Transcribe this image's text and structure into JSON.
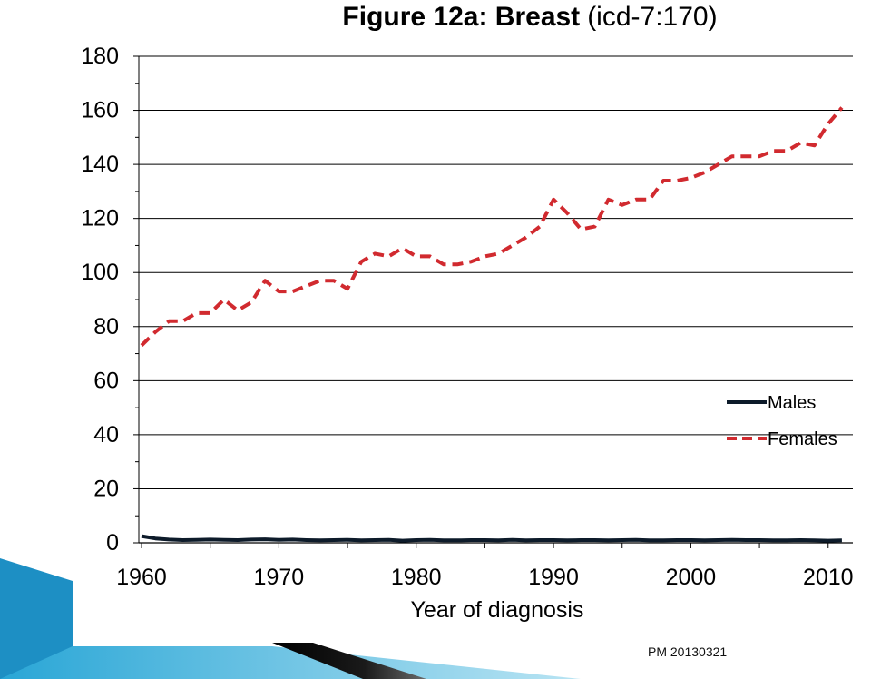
{
  "slide": {
    "stamp": "PM 20130321"
  },
  "chart_data": {
    "type": "line",
    "title_bold": "Figure 12a: Breast",
    "title_rest": "(icd-7:170)",
    "xlabel": "Year of diagnosis",
    "ylabel": "",
    "xlim": [
      1959.8,
      2011.8
    ],
    "ylim": [
      0,
      180
    ],
    "xticks": [
      1960,
      1970,
      1980,
      1990,
      2000,
      2010
    ],
    "yticks": [
      0,
      20,
      40,
      60,
      80,
      100,
      120,
      140,
      160,
      180
    ],
    "grid": true,
    "legend_position": "bottom-right",
    "series": [
      {
        "name": "Males",
        "color": "#0d1b2a",
        "style": "solid",
        "x": [
          1960,
          1961,
          1962,
          1963,
          1964,
          1965,
          1966,
          1967,
          1968,
          1969,
          1970,
          1971,
          1972,
          1973,
          1974,
          1975,
          1976,
          1977,
          1978,
          1979,
          1980,
          1981,
          1982,
          1983,
          1984,
          1985,
          1986,
          1987,
          1988,
          1989,
          1990,
          1991,
          1992,
          1993,
          1994,
          1995,
          1996,
          1997,
          1998,
          1999,
          2000,
          2001,
          2002,
          2003,
          2004,
          2005,
          2006,
          2007,
          2008,
          2009,
          2010,
          2011
        ],
        "values": [
          2.5,
          1.6,
          1.2,
          1.0,
          1.1,
          1.2,
          1.1,
          1.0,
          1.2,
          1.3,
          1.1,
          1.2,
          1.0,
          0.9,
          1.0,
          1.1,
          0.9,
          1.0,
          1.1,
          0.8,
          1.0,
          1.1,
          0.9,
          0.9,
          1.0,
          1.0,
          0.9,
          1.1,
          0.9,
          1.0,
          1.0,
          0.9,
          1.0,
          1.0,
          0.9,
          1.0,
          1.1,
          0.9,
          0.9,
          1.0,
          1.0,
          0.9,
          1.0,
          1.1,
          1.0,
          1.0,
          0.9,
          0.9,
          1.0,
          0.9,
          0.8,
          0.9
        ]
      },
      {
        "name": "Females",
        "color": "#d12a2f",
        "style": "dashed",
        "x": [
          1960,
          1961,
          1962,
          1963,
          1964,
          1965,
          1966,
          1967,
          1968,
          1969,
          1970,
          1971,
          1972,
          1973,
          1974,
          1975,
          1976,
          1977,
          1978,
          1979,
          1980,
          1981,
          1982,
          1983,
          1984,
          1985,
          1986,
          1987,
          1988,
          1989,
          1990,
          1991,
          1992,
          1993,
          1994,
          1995,
          1996,
          1997,
          1998,
          1999,
          2000,
          2001,
          2002,
          2003,
          2004,
          2005,
          2006,
          2007,
          2008,
          2009,
          2010,
          2011
        ],
        "values": [
          73,
          78,
          82,
          82,
          85,
          85,
          90,
          86,
          89,
          97,
          93,
          93,
          95,
          97,
          97,
          94,
          104,
          107,
          106,
          109,
          106,
          106,
          103,
          103,
          104,
          106,
          107,
          110,
          113,
          117,
          127,
          122,
          116,
          117,
          127,
          125,
          127,
          127,
          134,
          134,
          135,
          137,
          140,
          143,
          143,
          143,
          145,
          145,
          148,
          147,
          155,
          161
        ]
      }
    ]
  }
}
